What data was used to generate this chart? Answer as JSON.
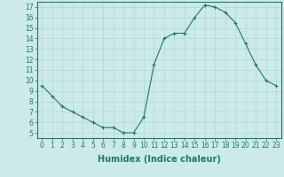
{
  "xlabel": "Humidex (Indice chaleur)",
  "x": [
    0,
    1,
    2,
    3,
    4,
    5,
    6,
    7,
    8,
    9,
    10,
    11,
    12,
    13,
    14,
    15,
    16,
    17,
    18,
    19,
    20,
    21,
    22,
    23
  ],
  "y": [
    9.5,
    8.5,
    7.5,
    7.0,
    6.5,
    6.0,
    5.5,
    5.5,
    5.0,
    5.0,
    6.5,
    11.5,
    14.0,
    14.5,
    14.5,
    16.0,
    17.2,
    17.0,
    16.5,
    15.5,
    13.5,
    11.5,
    10.0,
    9.5
  ],
  "line_color": "#1a7a6e",
  "marker": "+",
  "marker_size": 3,
  "marker_linewidth": 0.8,
  "bg_color": "#cceae7",
  "grid_color": "#b0d8d4",
  "xlim": [
    -0.5,
    23.5
  ],
  "ylim": [
    4.5,
    17.5
  ],
  "yticks": [
    5,
    6,
    7,
    8,
    9,
    10,
    11,
    12,
    13,
    14,
    15,
    16,
    17
  ],
  "xticks": [
    0,
    1,
    2,
    3,
    4,
    5,
    6,
    7,
    8,
    9,
    10,
    11,
    12,
    13,
    14,
    15,
    16,
    17,
    18,
    19,
    20,
    21,
    22,
    23
  ],
  "tick_color": "#1a7a6e",
  "label_fontsize": 5.5,
  "xlabel_fontsize": 7
}
